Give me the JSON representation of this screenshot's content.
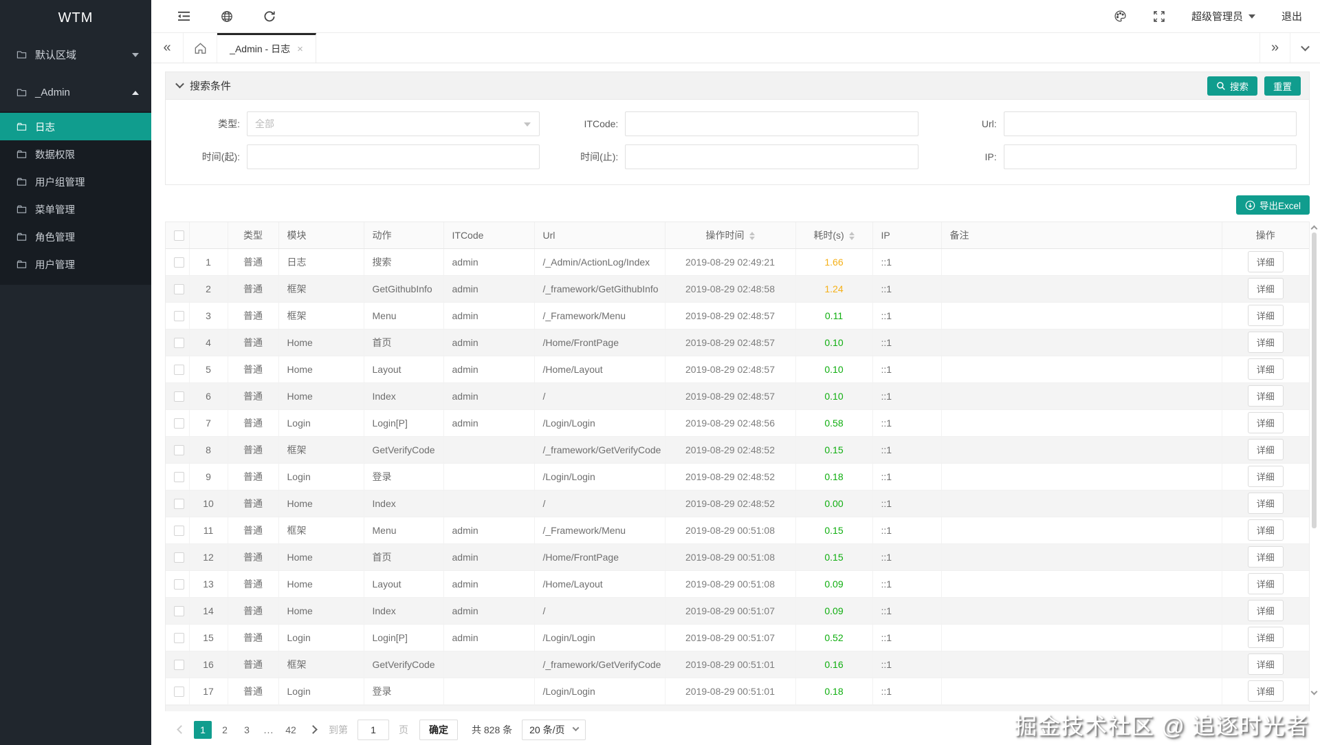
{
  "accent": "#109d8e",
  "status_colors": {
    "duration_fast": "#0fae0f",
    "duration_slow": "#f5b017"
  },
  "sidebar": {
    "brand": "WTM",
    "top_items": [
      {
        "key": "default-area",
        "label": "默认区域",
        "expanded": false
      },
      {
        "key": "admin",
        "label": "_Admin",
        "expanded": true
      }
    ],
    "submenu": [
      {
        "key": "log",
        "label": "日志",
        "active": true
      },
      {
        "key": "data-privilege",
        "label": "数据权限",
        "active": false
      },
      {
        "key": "user-group",
        "label": "用户组管理",
        "active": false
      },
      {
        "key": "menu-manage",
        "label": "菜单管理",
        "active": false
      },
      {
        "key": "role-manage",
        "label": "角色管理",
        "active": false
      },
      {
        "key": "user-manage",
        "label": "用户管理",
        "active": false
      }
    ]
  },
  "topbar": {
    "user": "超级管理员",
    "logout": "退出"
  },
  "tabbar": {
    "collapse_left": "«",
    "active_tab": "_Admin - 日志",
    "close": "×",
    "expand_right": "»"
  },
  "search_panel": {
    "title": "搜索条件",
    "search_label": "搜索",
    "reset_label": "重置",
    "fields": [
      {
        "key": "type",
        "label": "类型:",
        "kind": "select",
        "value": "全部"
      },
      {
        "key": "itcode",
        "label": "ITCode:",
        "kind": "input",
        "value": ""
      },
      {
        "key": "url",
        "label": "Url:",
        "kind": "input",
        "value": ""
      },
      {
        "key": "time-from",
        "label": "时间(起):",
        "kind": "input",
        "value": ""
      },
      {
        "key": "time-to",
        "label": "时间(止):",
        "kind": "input",
        "value": ""
      },
      {
        "key": "ip",
        "label": "IP:",
        "kind": "input",
        "value": ""
      }
    ]
  },
  "toolbar": {
    "export_label": "导出Excel"
  },
  "table": {
    "detail_label": "详细",
    "columns": [
      {
        "label": "类型",
        "align": "center",
        "sortable": false
      },
      {
        "label": "模块",
        "align": "left",
        "sortable": false
      },
      {
        "label": "动作",
        "align": "left",
        "sortable": false
      },
      {
        "label": "ITCode",
        "align": "left",
        "sortable": false
      },
      {
        "label": "Url",
        "align": "left",
        "sortable": false
      },
      {
        "label": "操作时间",
        "align": "center",
        "sortable": true
      },
      {
        "label": "耗时(s)",
        "align": "center",
        "sortable": true
      },
      {
        "label": "IP",
        "align": "left",
        "sortable": false
      },
      {
        "label": "备注",
        "align": "left",
        "sortable": false
      },
      {
        "label": "操作",
        "align": "center",
        "sortable": false
      }
    ],
    "rows": [
      {
        "no": 1,
        "type": "普通",
        "module": "日志",
        "action": "搜索",
        "itcode": "admin",
        "url": "/_Admin/ActionLog/Index",
        "time": "2019-08-29 02:49:21",
        "duration": "1.66",
        "ip": "::1",
        "remark": ""
      },
      {
        "no": 2,
        "type": "普通",
        "module": "框架",
        "action": "GetGithubInfo",
        "itcode": "admin",
        "url": "/_framework/GetGithubInfo",
        "time": "2019-08-29 02:48:58",
        "duration": "1.24",
        "ip": "::1",
        "remark": ""
      },
      {
        "no": 3,
        "type": "普通",
        "module": "框架",
        "action": "Menu",
        "itcode": "admin",
        "url": "/_Framework/Menu",
        "time": "2019-08-29 02:48:57",
        "duration": "0.11",
        "ip": "::1",
        "remark": ""
      },
      {
        "no": 4,
        "type": "普通",
        "module": "Home",
        "action": "首页",
        "itcode": "admin",
        "url": "/Home/FrontPage",
        "time": "2019-08-29 02:48:57",
        "duration": "0.10",
        "ip": "::1",
        "remark": ""
      },
      {
        "no": 5,
        "type": "普通",
        "module": "Home",
        "action": "Layout",
        "itcode": "admin",
        "url": "/Home/Layout",
        "time": "2019-08-29 02:48:57",
        "duration": "0.10",
        "ip": "::1",
        "remark": ""
      },
      {
        "no": 6,
        "type": "普通",
        "module": "Home",
        "action": "Index",
        "itcode": "admin",
        "url": "/",
        "time": "2019-08-29 02:48:57",
        "duration": "0.10",
        "ip": "::1",
        "remark": ""
      },
      {
        "no": 7,
        "type": "普通",
        "module": "Login",
        "action": "Login[P]",
        "itcode": "admin",
        "url": "/Login/Login",
        "time": "2019-08-29 02:48:56",
        "duration": "0.58",
        "ip": "::1",
        "remark": ""
      },
      {
        "no": 8,
        "type": "普通",
        "module": "框架",
        "action": "GetVerifyCode",
        "itcode": "",
        "url": "/_framework/GetVerifyCode",
        "time": "2019-08-29 02:48:52",
        "duration": "0.15",
        "ip": "::1",
        "remark": ""
      },
      {
        "no": 9,
        "type": "普通",
        "module": "Login",
        "action": "登录",
        "itcode": "",
        "url": "/Login/Login",
        "time": "2019-08-29 02:48:52",
        "duration": "0.18",
        "ip": "::1",
        "remark": ""
      },
      {
        "no": 10,
        "type": "普通",
        "module": "Home",
        "action": "Index",
        "itcode": "",
        "url": "/",
        "time": "2019-08-29 02:48:52",
        "duration": "0.00",
        "ip": "::1",
        "remark": ""
      },
      {
        "no": 11,
        "type": "普通",
        "module": "框架",
        "action": "Menu",
        "itcode": "admin",
        "url": "/_Framework/Menu",
        "time": "2019-08-29 00:51:08",
        "duration": "0.15",
        "ip": "::1",
        "remark": ""
      },
      {
        "no": 12,
        "type": "普通",
        "module": "Home",
        "action": "首页",
        "itcode": "admin",
        "url": "/Home/FrontPage",
        "time": "2019-08-29 00:51:08",
        "duration": "0.15",
        "ip": "::1",
        "remark": ""
      },
      {
        "no": 13,
        "type": "普通",
        "module": "Home",
        "action": "Layout",
        "itcode": "admin",
        "url": "/Home/Layout",
        "time": "2019-08-29 00:51:08",
        "duration": "0.09",
        "ip": "::1",
        "remark": ""
      },
      {
        "no": 14,
        "type": "普通",
        "module": "Home",
        "action": "Index",
        "itcode": "admin",
        "url": "/",
        "time": "2019-08-29 00:51:07",
        "duration": "0.09",
        "ip": "::1",
        "remark": ""
      },
      {
        "no": 15,
        "type": "普通",
        "module": "Login",
        "action": "Login[P]",
        "itcode": "admin",
        "url": "/Login/Login",
        "time": "2019-08-29 00:51:07",
        "duration": "0.52",
        "ip": "::1",
        "remark": ""
      },
      {
        "no": 16,
        "type": "普通",
        "module": "框架",
        "action": "GetVerifyCode",
        "itcode": "",
        "url": "/_framework/GetVerifyCode",
        "time": "2019-08-29 00:51:01",
        "duration": "0.16",
        "ip": "::1",
        "remark": ""
      },
      {
        "no": 17,
        "type": "普通",
        "module": "Login",
        "action": "登录",
        "itcode": "",
        "url": "/Login/Login",
        "time": "2019-08-29 00:51:01",
        "duration": "0.18",
        "ip": "::1",
        "remark": ""
      }
    ]
  },
  "pagination": {
    "pages": [
      "1",
      "2",
      "3",
      "...",
      "42"
    ],
    "active_page": "1",
    "goto_prefix": "到第",
    "goto_value": "1",
    "goto_suffix": "页",
    "confirm_label": "确定",
    "total_label": "共 828 条",
    "page_size_label": "20 条/页"
  },
  "watermark": "掘金技术社区 @ 追逐时光者"
}
